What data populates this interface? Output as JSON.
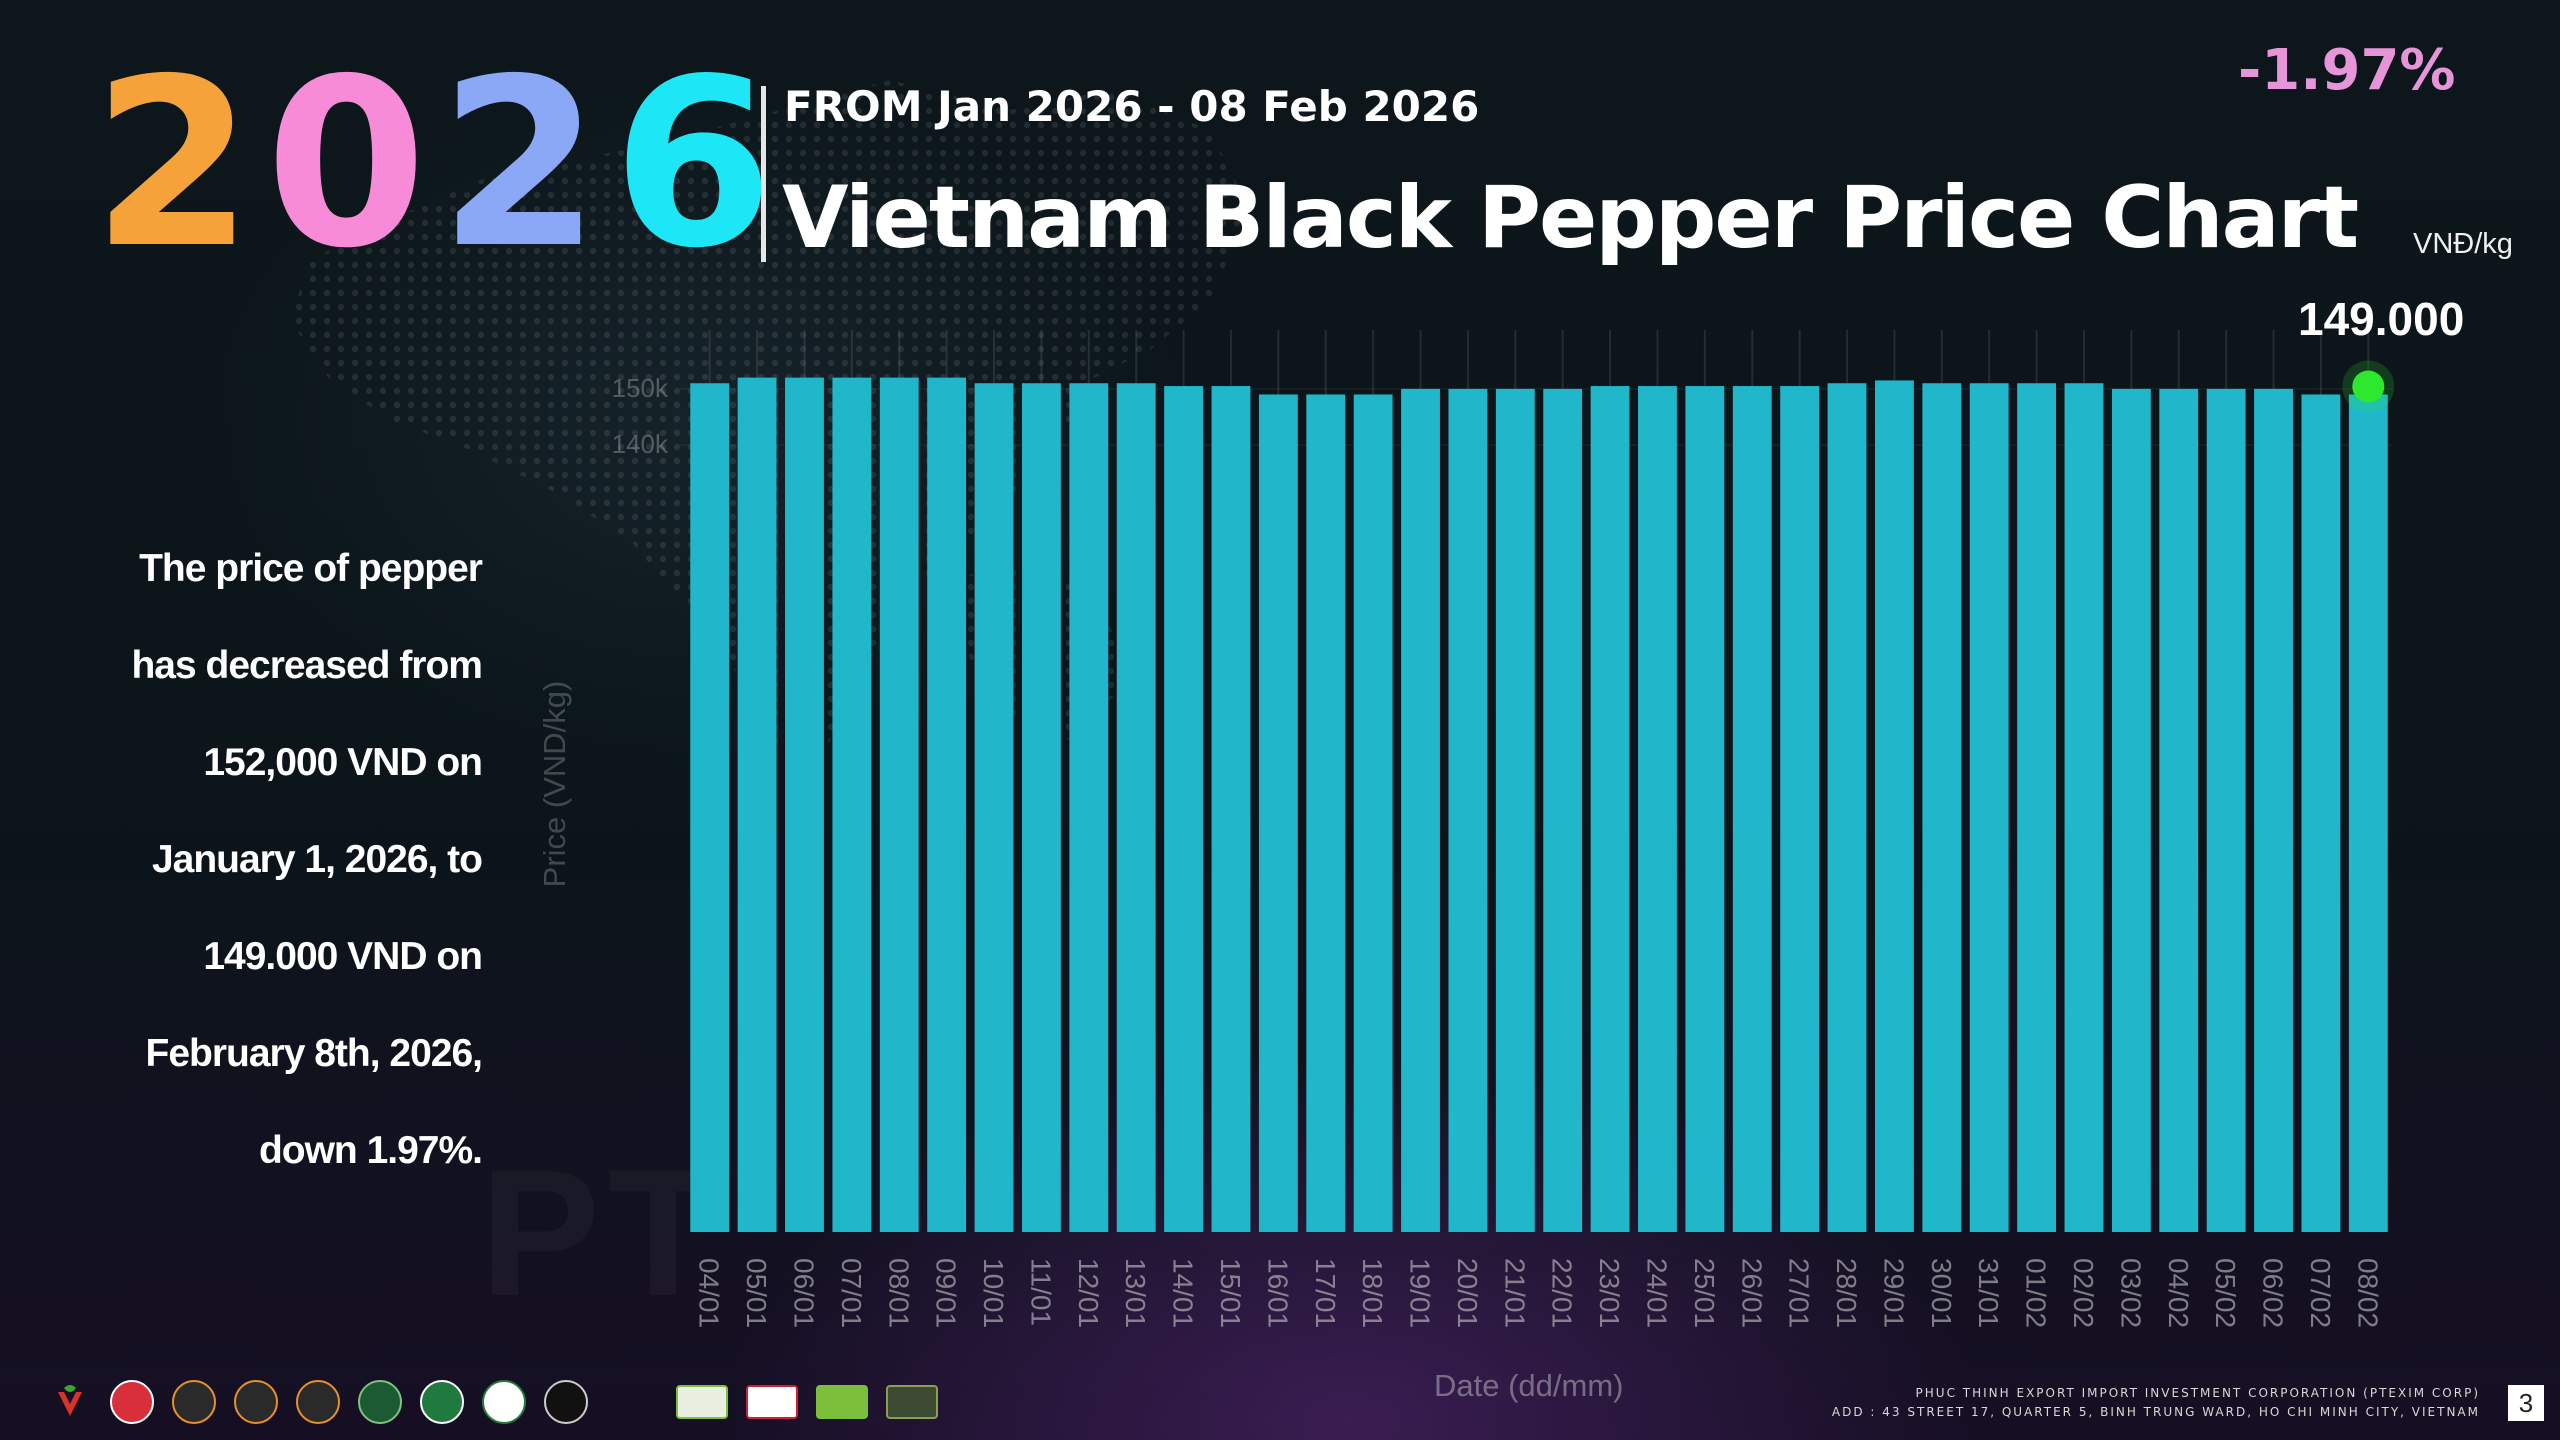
{
  "header": {
    "year_digits": [
      "2",
      "0",
      "2",
      "6"
    ],
    "date_range": "FROM Jan 2026 - 08 Feb 2026",
    "title": "Vietnam Black Pepper Price Chart",
    "unit": "VNĐ/kg",
    "change": "-1.97%",
    "last_value": "149.000"
  },
  "description": {
    "lines": [
      "The price of pepper",
      "has decreased from",
      "152,000 VND on",
      "January 1, 2026, to",
      "149.000 VND on",
      "February 8th, 2026,",
      "down 1.97%."
    ]
  },
  "chart_data": {
    "type": "bar",
    "title": "Vietnam Black Pepper Price Chart",
    "xlabel": "Date (dd/mm)",
    "ylabel": "Price (VND/kg)",
    "ytick_labels": [
      "150k",
      "140k"
    ],
    "categories": [
      "04/01",
      "05/01",
      "06/01",
      "07/01",
      "08/01",
      "09/01",
      "10/01",
      "11/01",
      "12/01",
      "13/01",
      "14/01",
      "15/01",
      "16/01",
      "17/01",
      "18/01",
      "19/01",
      "20/01",
      "21/01",
      "22/01",
      "23/01",
      "24/01",
      "25/01",
      "26/01",
      "27/01",
      "28/01",
      "29/01",
      "30/01",
      "31/01",
      "01/02",
      "02/02",
      "03/02",
      "04/02",
      "05/02",
      "06/02",
      "07/02",
      "08/02"
    ],
    "series": [
      {
        "values": [
          151000,
          152000,
          152000,
          152000,
          152000,
          152000,
          151000,
          151000,
          151000,
          151000,
          150500,
          150500,
          149000,
          149000,
          149000,
          150000,
          150000,
          150000,
          150000,
          150500,
          150500,
          150500,
          150500,
          150500,
          151000,
          151500,
          151000,
          151000,
          151000,
          151000,
          150000,
          150000,
          150000,
          150000,
          149000,
          149000
        ],
        "color": "#20b7cb"
      }
    ],
    "highlight": {
      "category": "08/02",
      "label": "149.000",
      "color": "#2ee82e"
    },
    "grid": false,
    "legend": "none"
  },
  "footer": {
    "logos": [
      "ptexim-logo",
      "vietfarm-logo",
      "certified-seal-logo",
      "certified-seal-logo-2",
      "certified-seal-logo-3",
      "rainforest-logo",
      "halal-logo",
      "usda-organic-logo",
      "kosher-logo",
      "fda-logo",
      "brcgs-logo",
      "control-union-logo",
      "eu-organic-logo",
      "uebt-logo"
    ],
    "company": "PHUC THINH EXPORT IMPORT INVESTMENT CORPORATION (PTEXIM CORP)",
    "address": "ADD : 43 STREET 17, QUARTER 5, BINH TRUNG WARD, HO CHI MINH CITY, VIETNAM",
    "page_number": "3"
  }
}
